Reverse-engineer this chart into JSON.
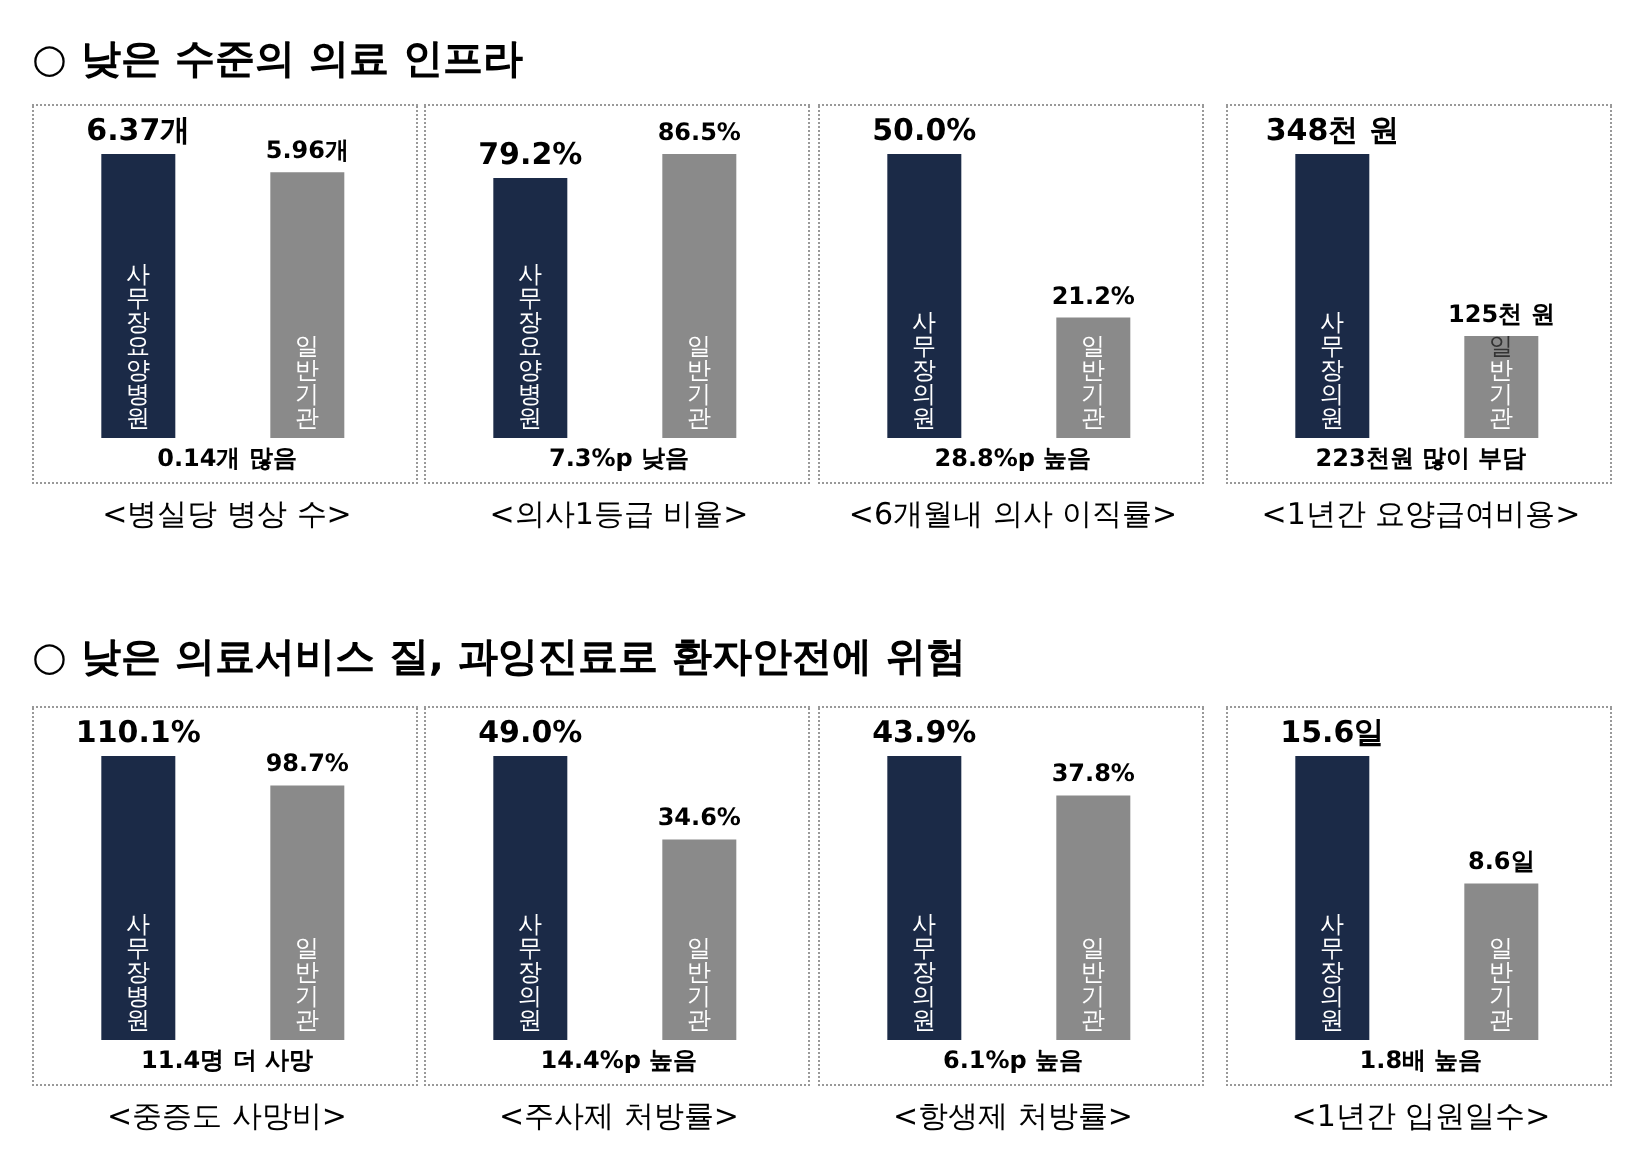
{
  "chart_data": [
    {
      "type": "bar",
      "title": "○ 낮은 수준의 의료 인프라",
      "categories": [
        "사무장요양병원",
        "일반기관"
      ],
      "values": [
        6.37,
        5.96
      ],
      "value_labels": [
        "6.37개",
        "5.96개"
      ],
      "colors": [
        "#1b2a47",
        "#8a8a8a"
      ],
      "xlabel": "<병실당 병상 수>",
      "annotations": [
        "0.14개 많음"
      ]
    },
    {
      "type": "bar",
      "categories": [
        "사무장요양병원",
        "일반기관"
      ],
      "values": [
        79.2,
        86.5
      ],
      "value_labels": [
        "79.2%",
        "86.5%"
      ],
      "colors": [
        "#1b2a47",
        "#8a8a8a"
      ],
      "xlabel": "<의사1등급 비율>",
      "annotations": [
        "7.3%p 낮음"
      ]
    },
    {
      "type": "bar",
      "categories": [
        "사무장의원",
        "일반기관"
      ],
      "values": [
        50.0,
        21.2
      ],
      "value_labels": [
        "50.0%",
        "21.2%"
      ],
      "colors": [
        "#1b2a47",
        "#8a8a8a"
      ],
      "xlabel": "<6개월내 의사 이직률>",
      "annotations": [
        "28.8%p 높음"
      ]
    },
    {
      "type": "bar",
      "categories": [
        "사무장의원",
        "일반기관"
      ],
      "values": [
        348,
        125
      ],
      "value_labels": [
        "348천 원",
        "125천 원"
      ],
      "colors": [
        "#1b2a47",
        "#8a8a8a"
      ],
      "xlabel": "<1년간 요양급여비용>",
      "annotations": [
        "223천원 많이 부담"
      ]
    },
    {
      "type": "bar",
      "title": "○ 낮은 의료서비스 질, 과잉진료로 환자안전에 위험",
      "categories": [
        "사무장병원",
        "일반기관"
      ],
      "values": [
        110.1,
        98.7
      ],
      "value_labels": [
        "110.1%",
        "98.7%"
      ],
      "colors": [
        "#1b2a47",
        "#8a8a8a"
      ],
      "xlabel": "<중증도 사망비>",
      "annotations": [
        "11.4명 더 사망"
      ]
    },
    {
      "type": "bar",
      "categories": [
        "사무장의원",
        "일반기관"
      ],
      "values": [
        49.0,
        34.6
      ],
      "value_labels": [
        "49.0%",
        "34.6%"
      ],
      "colors": [
        "#1b2a47",
        "#8a8a8a"
      ],
      "xlabel": "<주사제 처방률>",
      "annotations": [
        "14.4%p 높음"
      ]
    },
    {
      "type": "bar",
      "categories": [
        "사무장의원",
        "일반기관"
      ],
      "values": [
        43.9,
        37.8
      ],
      "value_labels": [
        "43.9%",
        "37.8%"
      ],
      "colors": [
        "#1b2a47",
        "#8a8a8a"
      ],
      "xlabel": "<항생제 처방률>",
      "annotations": [
        "6.1%p 높음"
      ]
    },
    {
      "type": "bar",
      "categories": [
        "사무장의원",
        "일반기관"
      ],
      "values": [
        15.6,
        8.6
      ],
      "value_labels": [
        "15.6일",
        "8.6일"
      ],
      "colors": [
        "#1b2a47",
        "#8a8a8a"
      ],
      "xlabel": "<1년간 입원일수>",
      "annotations": [
        "1.8배 높음"
      ]
    }
  ]
}
